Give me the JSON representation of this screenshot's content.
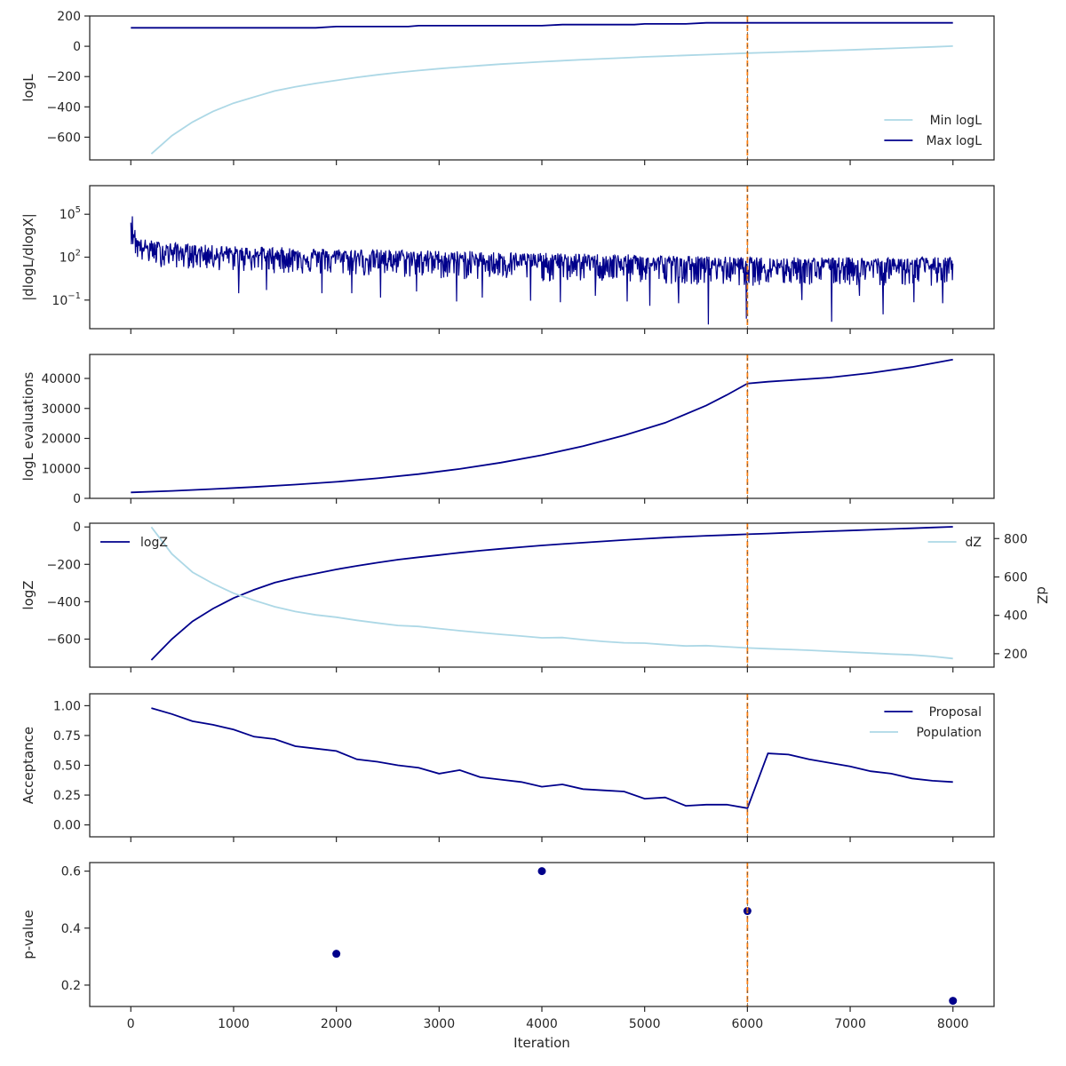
{
  "colors": {
    "dark_series": "#00008b",
    "light_series": "#add8e6",
    "marker": "#ff7f0e",
    "marker_overlay": "#555555",
    "spine": "#262626"
  },
  "shared_x": {
    "xlabel": "Iteration",
    "ticks": [
      0,
      1000,
      2000,
      3000,
      4000,
      5000,
      6000,
      7000,
      8000
    ],
    "xlim": [
      -400,
      8400
    ]
  },
  "vline_x": 6000,
  "chart_data": [
    {
      "type": "line",
      "ylabel": "logL",
      "ylim": [
        -750,
        200
      ],
      "yticks": [
        200,
        0,
        -200,
        -400,
        -600
      ],
      "yticklabels": [
        "200",
        "0",
        "−200",
        "−400",
        "−600"
      ],
      "legend": "lower-right",
      "series": [
        {
          "name": "Min logL",
          "color": "light",
          "x": [
            200,
            400,
            600,
            800,
            1000,
            1200,
            1400,
            1600,
            1800,
            2000,
            2200,
            2400,
            2600,
            2800,
            3000,
            3200,
            3400,
            3600,
            3800,
            4000,
            4200,
            4400,
            4600,
            4800,
            5000,
            5200,
            5400,
            5600,
            5800,
            6000,
            6200,
            6400,
            6600,
            6800,
            7000,
            7200,
            7400,
            7600,
            7800,
            8000
          ],
          "y": [
            -710,
            -590,
            -500,
            -430,
            -375,
            -335,
            -295,
            -268,
            -245,
            -225,
            -205,
            -188,
            -173,
            -160,
            -148,
            -137,
            -127,
            -118,
            -110,
            -102,
            -95,
            -88,
            -82,
            -76,
            -70,
            -65,
            -60,
            -55,
            -50,
            -45,
            -41,
            -37,
            -33,
            -28,
            -24,
            -19,
            -14,
            -9,
            -4,
            1
          ]
        },
        {
          "name": "Max logL",
          "color": "dark",
          "x": [
            0,
            1800,
            2000,
            2700,
            2800,
            4000,
            4200,
            4900,
            5000,
            5400,
            5600,
            8000
          ],
          "y": [
            122,
            122,
            130,
            130,
            136,
            136,
            143,
            143,
            148,
            148,
            155,
            155
          ]
        }
      ]
    },
    {
      "type": "line",
      "ylabel": "|dlogL/dlogX|",
      "yscale": "log",
      "ylim": [
        0.001,
        10000000
      ],
      "yticks": [
        100000,
        100,
        0.1
      ],
      "yticklabels": [
        "10",
        "10",
        "10"
      ],
      "ytickexps": [
        "5",
        "2",
        "−1"
      ],
      "series": [
        {
          "name": "",
          "color": "dark",
          "x_range": [
            0,
            8000
          ],
          "envelope_x": [
            0,
            50,
            100,
            300,
            600,
            1000,
            2000,
            3000,
            4000,
            5000,
            6000,
            7000,
            8000
          ],
          "envelope_upper": [
            300000,
            5000,
            2000,
            1200,
            800,
            600,
            400,
            300,
            200,
            150,
            100,
            100,
            100
          ],
          "envelope_center": [
            50000,
            1000,
            500,
            300,
            200,
            150,
            100,
            70,
            50,
            35,
            25,
            25,
            25
          ],
          "envelope_lower": [
            1000,
            80,
            40,
            20,
            15,
            10,
            5,
            3,
            2,
            1.5,
            1,
            1,
            1
          ],
          "deep_dips": [
            {
              "x": 1050,
              "y": 0.3
            },
            {
              "x": 1320,
              "y": 0.5
            },
            {
              "x": 1860,
              "y": 0.3
            },
            {
              "x": 2150,
              "y": 0.3
            },
            {
              "x": 2430,
              "y": 0.15
            },
            {
              "x": 2780,
              "y": 0.4
            },
            {
              "x": 3170,
              "y": 0.08
            },
            {
              "x": 3420,
              "y": 0.15
            },
            {
              "x": 3890,
              "y": 0.09
            },
            {
              "x": 4180,
              "y": 0.07
            },
            {
              "x": 4520,
              "y": 0.2
            },
            {
              "x": 4830,
              "y": 0.08
            },
            {
              "x": 5050,
              "y": 0.04
            },
            {
              "x": 5330,
              "y": 0.06
            },
            {
              "x": 5620,
              "y": 0.002
            },
            {
              "x": 5990,
              "y": 0.005
            },
            {
              "x": 6530,
              "y": 0.1
            },
            {
              "x": 6820,
              "y": 0.003
            },
            {
              "x": 7090,
              "y": 0.2
            },
            {
              "x": 7320,
              "y": 0.01
            },
            {
              "x": 7620,
              "y": 0.07
            },
            {
              "x": 7900,
              "y": 0.06
            }
          ]
        }
      ]
    },
    {
      "type": "line",
      "ylabel": "logL evaluations",
      "ylim": [
        0,
        48000
      ],
      "yticks": [
        0,
        10000,
        20000,
        30000,
        40000
      ],
      "yticklabels": [
        "0",
        "10000",
        "20000",
        "30000",
        "40000"
      ],
      "series": [
        {
          "name": "",
          "color": "dark",
          "x": [
            0,
            400,
            800,
            1200,
            1600,
            2000,
            2400,
            2800,
            3200,
            3600,
            4000,
            4400,
            4800,
            5200,
            5600,
            5800,
            6000,
            6200,
            6800,
            7200,
            7600,
            8000
          ],
          "y": [
            2000,
            2500,
            3100,
            3800,
            4600,
            5500,
            6700,
            8100,
            9800,
            11900,
            14400,
            17400,
            21000,
            25200,
            31000,
            34500,
            38300,
            38900,
            40300,
            41800,
            43800,
            46300
          ]
        }
      ]
    },
    {
      "type": "line",
      "ylabel": "logZ",
      "ylim": [
        -750,
        20
      ],
      "yticks": [
        0,
        -200,
        -400,
        -600
      ],
      "yticklabels": [
        "0",
        "−200",
        "−400",
        "−600"
      ],
      "y2label": "dZ",
      "y2lim": [
        130,
        880
      ],
      "y2ticks": [
        800,
        600,
        400,
        200
      ],
      "y2ticklabels": [
        "800",
        "600",
        "400",
        "200"
      ],
      "legend": "upper-left",
      "legend2": "upper-right",
      "series": [
        {
          "name": "logZ",
          "color": "dark",
          "axis": "left",
          "x": [
            200,
            400,
            600,
            800,
            1000,
            1200,
            1400,
            1600,
            1800,
            2000,
            2200,
            2400,
            2600,
            2800,
            3000,
            3200,
            3400,
            3600,
            3800,
            4000,
            4200,
            4400,
            4600,
            4800,
            5000,
            5200,
            5400,
            5600,
            5800,
            6000,
            6200,
            6400,
            6600,
            6800,
            7000,
            7200,
            7400,
            7600,
            7800,
            8000
          ],
          "y": [
            -712,
            -600,
            -505,
            -437,
            -380,
            -336,
            -298,
            -271,
            -249,
            -227,
            -208,
            -191,
            -175,
            -162,
            -150,
            -138,
            -127,
            -117,
            -108,
            -99,
            -91,
            -84,
            -77,
            -70,
            -63,
            -57,
            -52,
            -47,
            -43,
            -39,
            -35,
            -31,
            -27,
            -23,
            -19,
            -15,
            -11,
            -7,
            -3,
            1
          ]
        },
        {
          "name": "dZ",
          "color": "light",
          "axis": "right",
          "x": [
            200,
            400,
            600,
            800,
            1000,
            1200,
            1400,
            1600,
            1800,
            2000,
            2200,
            2400,
            2600,
            2800,
            3000,
            3200,
            3400,
            3600,
            3800,
            4000,
            4200,
            4400,
            4600,
            4800,
            5000,
            5200,
            5400,
            5600,
            5800,
            6000,
            6200,
            6400,
            6600,
            6800,
            7000,
            7200,
            7400,
            7600,
            7800,
            8000
          ],
          "y": [
            860,
            720,
            625,
            565,
            515,
            478,
            445,
            420,
            402,
            390,
            374,
            360,
            347,
            342,
            331,
            320,
            310,
            301,
            292,
            283,
            284,
            273,
            264,
            257,
            255,
            247,
            240,
            242,
            236,
            230,
            226,
            222,
            218,
            213,
            208,
            203,
            198,
            194,
            186,
            175
          ]
        }
      ]
    },
    {
      "type": "line",
      "ylabel": "Acceptance",
      "ylim": [
        -0.1,
        1.1
      ],
      "yticks": [
        1.0,
        0.75,
        0.5,
        0.25,
        0.0
      ],
      "yticklabels": [
        "1.00",
        "0.75",
        "0.50",
        "0.25",
        "0.00"
      ],
      "legend": "upper-right",
      "series": [
        {
          "name": "Proposal",
          "color": "dark",
          "x": [
            200,
            400,
            600,
            800,
            1000,
            1200,
            1400,
            1600,
            1800,
            2000,
            2200,
            2400,
            2600,
            2800,
            3000,
            3200,
            3400,
            3600,
            3800,
            4000,
            4200,
            4400,
            4600,
            4800,
            5000,
            5200,
            5400,
            5600,
            5800,
            6000,
            6200,
            6400,
            6600,
            6800,
            7000,
            7200,
            7400,
            7600,
            7800,
            8000
          ],
          "y": [
            0.98,
            0.93,
            0.87,
            0.84,
            0.8,
            0.74,
            0.72,
            0.66,
            0.64,
            0.62,
            0.55,
            0.53,
            0.5,
            0.48,
            0.43,
            0.46,
            0.4,
            0.38,
            0.36,
            0.32,
            0.34,
            0.3,
            0.29,
            0.28,
            0.22,
            0.23,
            0.16,
            0.17,
            0.17,
            0.14,
            0.6,
            0.59,
            0.55,
            0.52,
            0.49,
            0.45,
            0.43,
            0.39,
            0.37,
            0.36
          ]
        },
        {
          "name": "Population",
          "color": "light",
          "x": [],
          "y": []
        }
      ]
    },
    {
      "type": "scatter",
      "ylabel": "p-value",
      "ylim": [
        0.125,
        0.63
      ],
      "yticks": [
        0.6,
        0.4,
        0.2
      ],
      "yticklabels": [
        "0.6",
        "0.4",
        "0.2"
      ],
      "series": [
        {
          "name": "",
          "color": "dark",
          "x": [
            2000,
            4000,
            6000,
            8000
          ],
          "y": [
            0.31,
            0.6,
            0.46,
            0.145
          ]
        }
      ]
    }
  ]
}
